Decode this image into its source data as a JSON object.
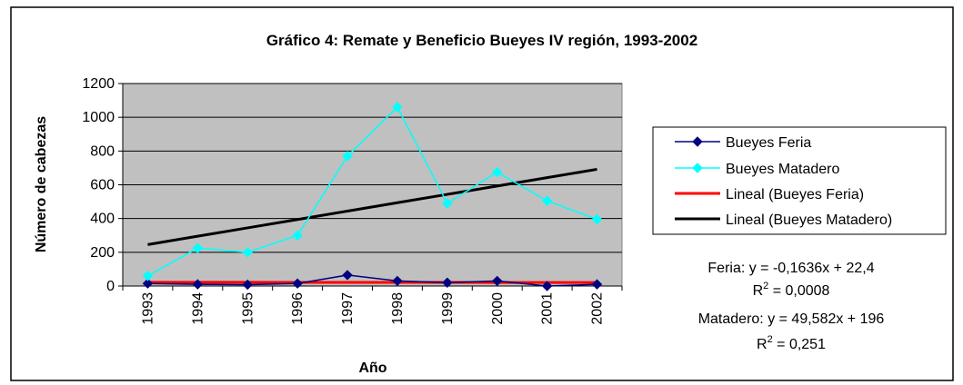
{
  "chart_data": {
    "type": "line",
    "title": "Gráfico 4: Remate  y Beneficio Bueyes IV región, 1993-2002",
    "x_label": "Año",
    "y_label": "Número de cabezas",
    "categories": [
      "1993",
      "1994",
      "1995",
      "1996",
      "1997",
      "1998",
      "1999",
      "2000",
      "2001",
      "2002"
    ],
    "ylim": [
      0,
      1200
    ],
    "yticks": [
      0,
      200,
      400,
      600,
      800,
      1000,
      1200
    ],
    "grid": true,
    "legend": "right",
    "series": [
      {
        "name": "Bueyes Feria",
        "color": "#000080",
        "marker": "diamond",
        "values": [
          15,
          10,
          8,
          15,
          65,
          30,
          20,
          30,
          0,
          10
        ]
      },
      {
        "name": "Bueyes Matadero",
        "color": "#00ffff",
        "marker": "diamond",
        "values": [
          60,
          225,
          200,
          300,
          770,
          1060,
          490,
          675,
          505,
          395
        ]
      },
      {
        "name": "Lineal (Bueyes Feria)",
        "color": "#ff0000",
        "marker": "none",
        "values": [
          22.24,
          22.07,
          21.91,
          21.75,
          21.58,
          21.42,
          21.25,
          21.09,
          20.93,
          20.76
        ]
      },
      {
        "name": "Lineal (Bueyes Matadero)",
        "color": "#000000",
        "marker": "none",
        "values": [
          245.6,
          295.2,
          344.7,
          394.3,
          443.9,
          493.5,
          543.1,
          592.7,
          642.2,
          691.8
        ]
      }
    ],
    "annotations": [
      {
        "equation": "Feria: y = -0,1636x + 22,4",
        "r2": {
          "base": "R",
          "sup": "2",
          "rest": " = 0,0008"
        }
      },
      {
        "equation": "Matadero: y = 49,582x + 196",
        "r2": {
          "base": "R",
          "sup": "2",
          "rest": " = 0,251"
        }
      }
    ]
  }
}
